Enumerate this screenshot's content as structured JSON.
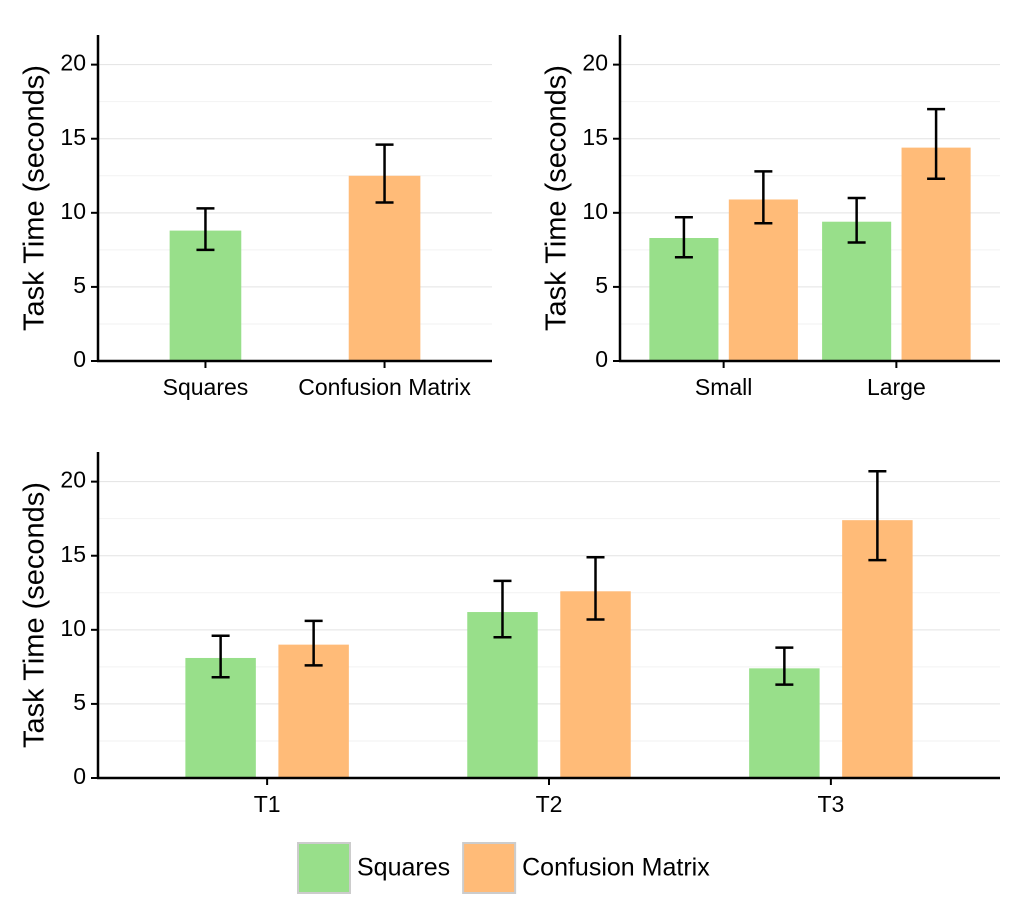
{
  "chart_data": [
    {
      "type": "bar",
      "ylabel": "Task Time (seconds)",
      "categories": [
        "Squares",
        "Confusion Matrix"
      ],
      "values": [
        8.8,
        12.5
      ],
      "ci_low": [
        7.5,
        10.7
      ],
      "ci_high": [
        10.3,
        14.6
      ],
      "colors": [
        "#98df8a",
        "#ffbb78"
      ],
      "ylim": [
        0,
        22
      ],
      "yticks": [
        0,
        5,
        10,
        15,
        20
      ],
      "minor_yticks": [
        2.5,
        7.5,
        12.5,
        17.5
      ],
      "grid": true
    },
    {
      "type": "grouped_bar",
      "ylabel": "Task Time (seconds)",
      "categories": [
        "Small",
        "Large"
      ],
      "series": [
        {
          "color": "#98df8a",
          "values": [
            8.3,
            9.4
          ],
          "ci_low": [
            7.0,
            8.0
          ],
          "ci_high": [
            9.7,
            11.0
          ]
        },
        {
          "color": "#ffbb78",
          "values": [
            10.9,
            14.4
          ],
          "ci_low": [
            9.3,
            12.3
          ],
          "ci_high": [
            12.8,
            17.0
          ]
        }
      ],
      "ylim": [
        0,
        22
      ],
      "yticks": [
        0,
        5,
        10,
        15,
        20
      ],
      "minor_yticks": [
        2.5,
        7.5,
        12.5,
        17.5
      ],
      "grid": true
    },
    {
      "type": "grouped_bar",
      "ylabel": "Task Time (seconds)",
      "categories": [
        "T1",
        "T2",
        "T3"
      ],
      "series": [
        {
          "name": "Squares",
          "color": "#98df8a",
          "values": [
            8.1,
            11.2,
            7.4
          ],
          "ci_low": [
            6.8,
            9.5,
            6.3
          ],
          "ci_high": [
            9.6,
            13.3,
            8.8
          ]
        },
        {
          "name": "Confusion Matrix",
          "color": "#ffbb78",
          "values": [
            9.0,
            12.6,
            17.4
          ],
          "ci_low": [
            7.6,
            10.7,
            14.7
          ],
          "ci_high": [
            10.6,
            14.9,
            20.7
          ]
        }
      ],
      "ylim": [
        0,
        22
      ],
      "yticks": [
        0,
        5,
        10,
        15,
        20
      ],
      "minor_yticks": [
        2.5,
        7.5,
        12.5,
        17.5
      ],
      "grid": true,
      "legend": "bottom"
    }
  ]
}
